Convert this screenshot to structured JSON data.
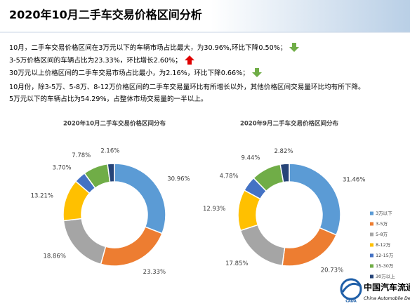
{
  "slide": {
    "title": "2020年10月二手车交易价格区间分析",
    "lines": [
      "10月，二手车交易价格区间在3万元以下的车辆市场占比最大，为30.96%,环比下降0.50%；",
      "3-5万价格区间的车辆占比为23.33%，环比增长2.60%；",
      "30万元以上价格区间的二手车交易市场占比最小，为2.16%，环比下降0.66%；",
      "10月份，除3-5万、5-8万、8-12万价格区间的二手车交易量环比有所增长以外，其他价格区间交易量环比均有所下降。",
      "5万元以下的车辆占比为54.29%，占整体市场交易量的一半以上。"
    ]
  },
  "chart_data": [
    {
      "type": "donut",
      "title": "2020年10月二手车交易价格区间分布",
      "categories": [
        "3万以下",
        "3-5万",
        "5-8万",
        "8-12万",
        "12-15万",
        "15-30万",
        "30万以上"
      ],
      "values": [
        30.96,
        23.33,
        18.86,
        13.21,
        3.7,
        7.78,
        2.16
      ],
      "value_labels": [
        "30.96%",
        "23.33%",
        "18.86%",
        "13.21%",
        "3.70%",
        "7.78%",
        "2.16%"
      ],
      "colors": [
        "#5b9bd5",
        "#ed7d31",
        "#a5a5a5",
        "#ffc000",
        "#4472c4",
        "#70ad47",
        "#264478"
      ]
    },
    {
      "type": "donut",
      "title": "2020年9月二手车交易价格区间分布",
      "categories": [
        "3万以下",
        "3-5万",
        "5-8万",
        "8-12万",
        "12-15万",
        "15-30万",
        "30万以上"
      ],
      "values": [
        31.46,
        20.73,
        17.85,
        12.93,
        4.78,
        9.44,
        2.82
      ],
      "value_labels": [
        "31.46%",
        "20.73%",
        "17.85%",
        "12.93%",
        "4.78%",
        "9.44%",
        "2.82%"
      ],
      "colors": [
        "#5b9bd5",
        "#ed7d31",
        "#a5a5a5",
        "#ffc000",
        "#4472c4",
        "#70ad47",
        "#264478"
      ]
    }
  ],
  "logo": {
    "name": "中国汽车流通协会",
    "english": "China Automobile Dealers Association",
    "abbr": "CADA"
  }
}
